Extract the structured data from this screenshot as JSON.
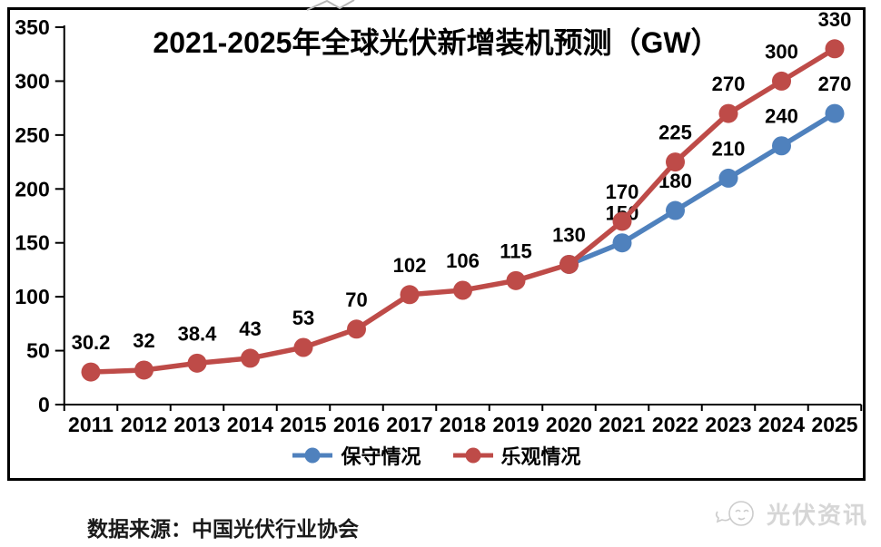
{
  "page": {
    "source_note": "数据来源：中国光伏行业协会",
    "watermark": "光伏资讯"
  },
  "chart_data": {
    "type": "line",
    "title": "2021-2025年全球光伏新增装机预测（GW）",
    "title_unit": "GW",
    "categories": [
      "2011",
      "2012",
      "2013",
      "2014",
      "2015",
      "2016",
      "2017",
      "2018",
      "2019",
      "2020",
      "2021",
      "2022",
      "2023",
      "2024",
      "2025"
    ],
    "xlabel": "",
    "ylabel": "",
    "ylim": [
      0,
      350
    ],
    "ytick_step": 50,
    "grid": false,
    "legend_position": "bottom",
    "axis_color": "#000000",
    "label_color": "#000000",
    "series": [
      {
        "name": "保守情况",
        "color": "#4F81BD",
        "values": [
          null,
          null,
          null,
          null,
          null,
          null,
          null,
          null,
          null,
          130,
          150,
          180,
          210,
          240,
          270
        ],
        "point_labels": [
          null,
          null,
          null,
          null,
          null,
          null,
          null,
          null,
          null,
          null,
          "150",
          "180",
          "210",
          "240",
          "270"
        ]
      },
      {
        "name": "乐观情况",
        "color": "#BE4B48",
        "values": [
          30.2,
          32,
          38.4,
          43,
          53,
          70,
          102,
          106,
          115,
          130,
          170,
          225,
          270,
          300,
          330
        ],
        "point_labels": [
          "30.2",
          "32",
          "38.4",
          "43",
          "53",
          "70",
          "102",
          "106",
          "115",
          "130",
          "170",
          "225",
          "270",
          "300",
          "330"
        ]
      }
    ]
  }
}
